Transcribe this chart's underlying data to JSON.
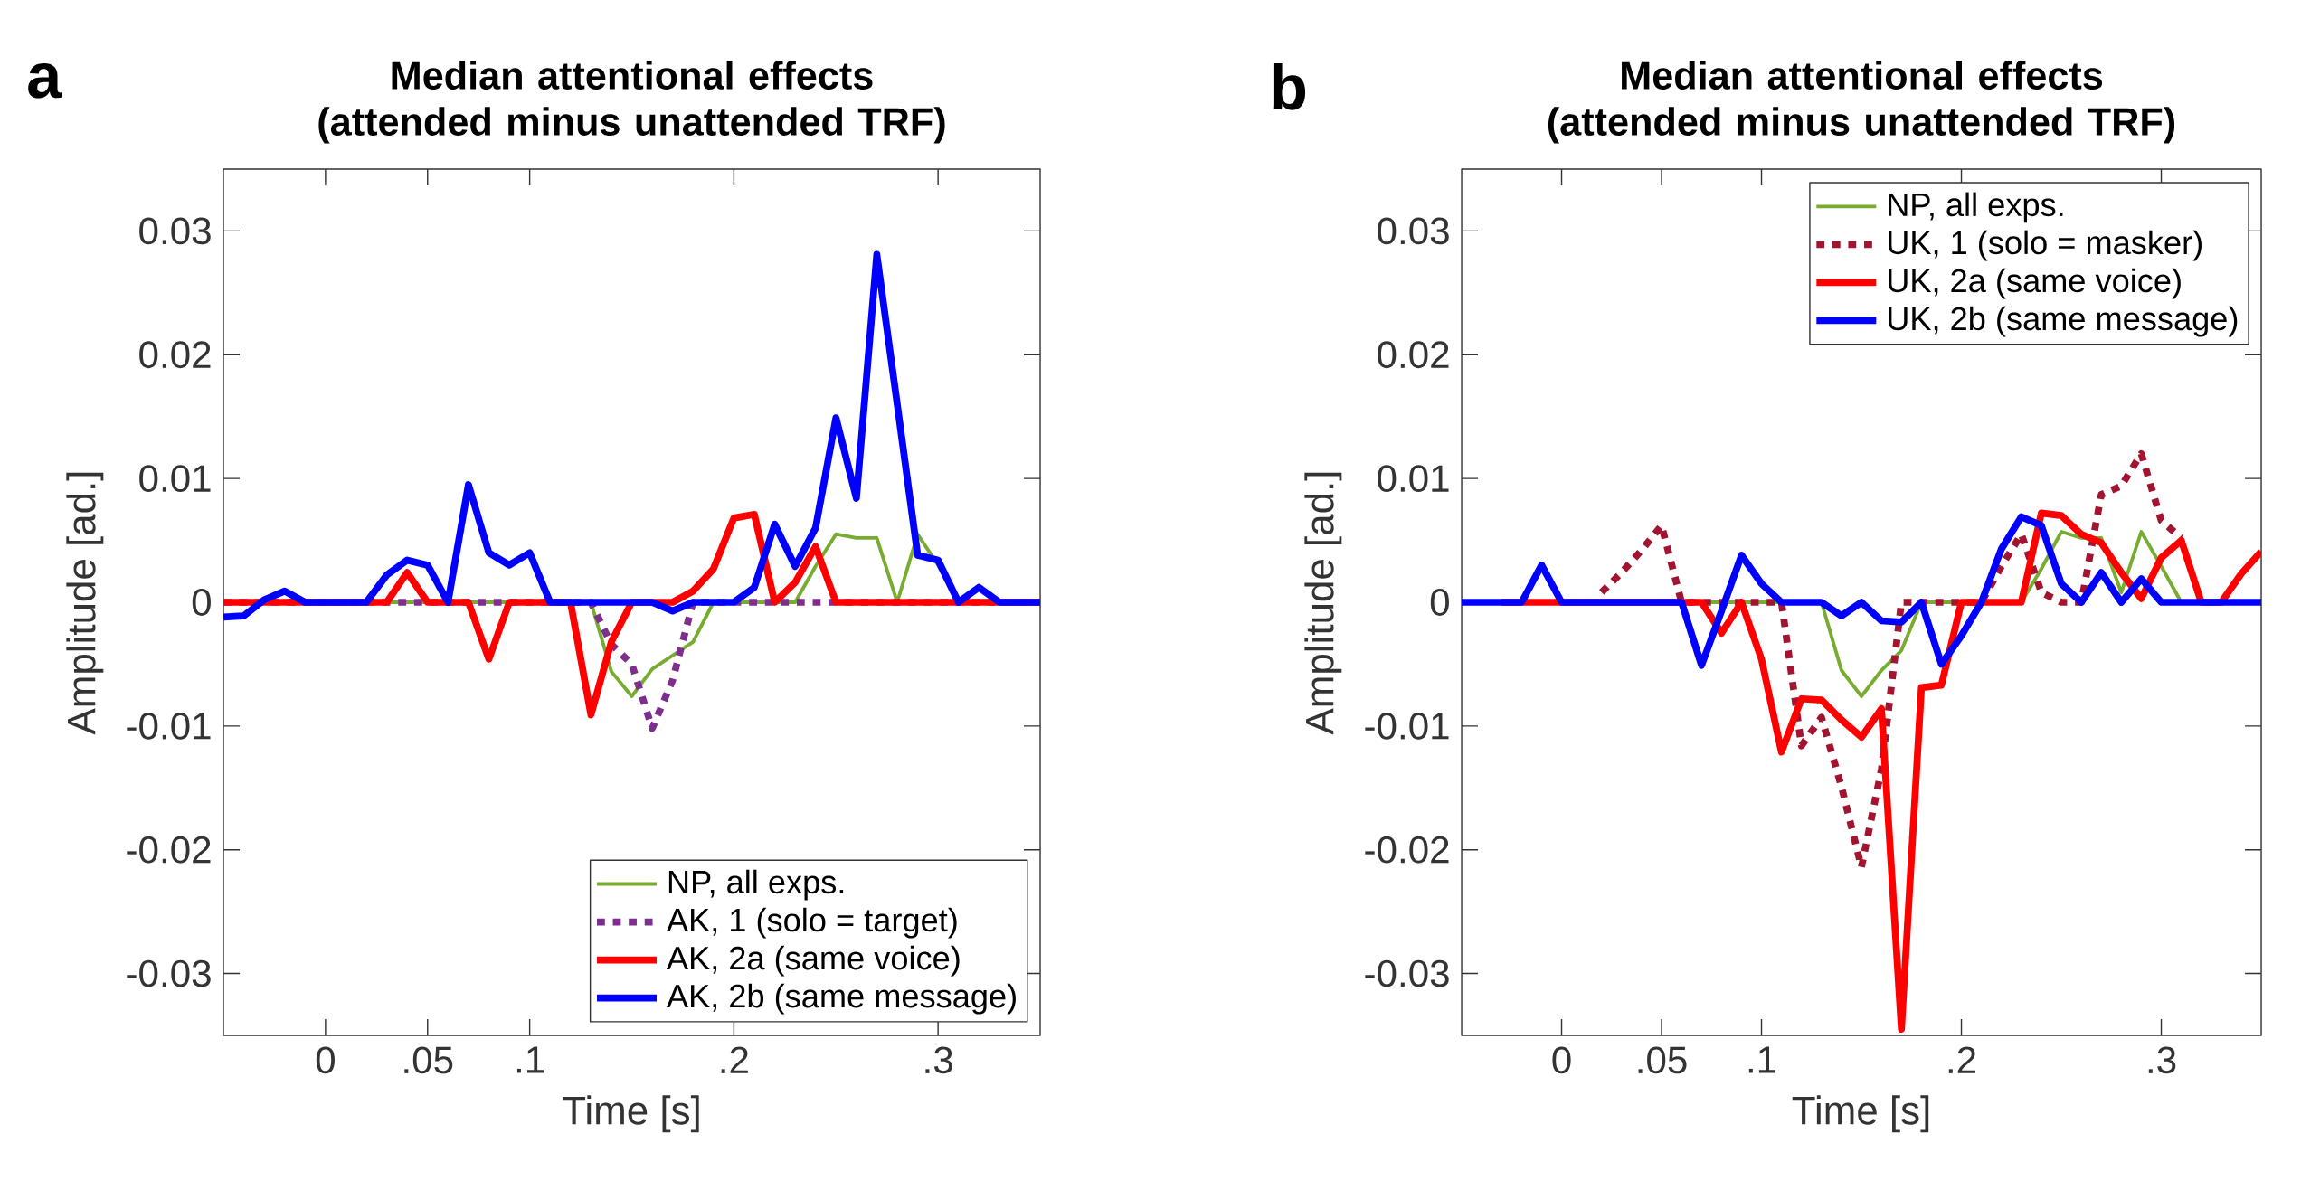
{
  "chart_data": [
    {
      "type": "line",
      "title": "Median attentional effects (attended minus unattended TRF)",
      "xlabel": "Time [s]",
      "ylabel": "Amplitude [ad.]",
      "annotations": [
        "a"
      ],
      "xlim": [
        -0.05,
        0.35
      ],
      "ylim": [
        -0.035,
        0.035
      ],
      "xticks": [
        0,
        {
          "value": 0.05,
          "label": ".05"
        },
        {
          "value": 0.1,
          "label": ".1"
        },
        {
          "value": 0.2,
          "label": ".2"
        },
        {
          "value": 0.3,
          "label": ".3"
        }
      ],
      "yticks": [
        -0.03,
        -0.02,
        -0.01,
        0,
        0.01,
        0.02,
        0.03
      ],
      "legend": "bottom right",
      "grid": false,
      "x": [
        -0.05,
        -0.04,
        -0.03,
        -0.02,
        -0.01,
        0,
        0.01,
        0.02,
        0.03,
        0.04,
        0.05,
        0.06,
        0.07,
        0.08,
        0.09,
        0.1,
        0.11,
        0.12,
        0.13,
        0.14,
        0.15,
        0.16,
        0.17,
        0.18,
        0.19,
        0.2,
        0.21,
        0.22,
        0.23,
        0.24,
        0.25,
        0.26,
        0.27,
        0.28,
        0.29,
        0.3,
        0.31,
        0.32,
        0.33,
        0.34,
        0.35
      ],
      "series": [
        {
          "name": "NP, all exps.",
          "color": "#77ac30",
          "line_style": "solid",
          "values": [
            null,
            null,
            null,
            null,
            null,
            null,
            null,
            0,
            0,
            0,
            0,
            0,
            0,
            0,
            0,
            0,
            0,
            0,
            0,
            -0.0056,
            -0.0076,
            -0.0054,
            -0.0043,
            -0.0032,
            0,
            0,
            0,
            0,
            0,
            0.0029,
            0.0055,
            0.0052,
            0.0052,
            0,
            0.0055,
            0.003,
            0,
            null,
            null,
            null,
            null
          ]
        },
        {
          "name": "AK, 1 (solo = target)",
          "color": "#7e2f8e",
          "line_style": "dotted",
          "values": [
            0,
            0,
            0,
            0,
            0,
            0,
            0,
            0,
            0,
            0,
            0,
            0,
            0,
            0,
            0,
            0,
            0,
            0,
            0,
            -0.0034,
            -0.005,
            -0.0102,
            -0.0063,
            0,
            0,
            0,
            0,
            0,
            0,
            0,
            0,
            0,
            0,
            0,
            0,
            0,
            0,
            0,
            0,
            0,
            0
          ]
        },
        {
          "name": "AK, 2a (same voice)",
          "color": "#ff0000",
          "line_style": "solid",
          "values": [
            0,
            0,
            0,
            0,
            0,
            0,
            0,
            0,
            0,
            0.0024,
            0,
            0,
            0,
            -0.0046,
            0,
            0,
            0,
            0,
            -0.0091,
            -0.0032,
            0,
            0,
            0,
            0.0009,
            0.0027,
            0.0068,
            0.0071,
            0,
            0.0016,
            0.0045,
            0,
            0,
            0,
            0,
            0,
            0,
            0,
            0,
            0,
            0,
            0
          ]
        },
        {
          "name": "AK, 2b (same message)",
          "color": "#0000ff",
          "line_style": "solid",
          "values": [
            -0.0012,
            -0.0011,
            0.0002,
            0.0009,
            0,
            0,
            0,
            0,
            0.0022,
            0.0034,
            0.003,
            0,
            0.0095,
            0.004,
            0.003,
            0.004,
            0,
            0,
            0,
            0,
            0,
            0,
            -0.0007,
            0,
            0,
            0,
            0.0012,
            0.0063,
            0.0029,
            0.006,
            0.0149,
            0.0084,
            0.0281,
            0.016,
            0.0038,
            0.0034,
            0,
            0.0012,
            0,
            0,
            0
          ]
        }
      ]
    },
    {
      "type": "line",
      "title": "Median attentional effects (attended minus unattended TRF)",
      "xlabel": "Time [s]",
      "ylabel": "Amplitude [ad.]",
      "annotations": [
        "b"
      ],
      "xlim": [
        -0.05,
        0.35
      ],
      "ylim": [
        -0.035,
        0.035
      ],
      "xticks": [
        0,
        {
          "value": 0.05,
          "label": ".05"
        },
        {
          "value": 0.1,
          "label": ".1"
        },
        {
          "value": 0.2,
          "label": ".2"
        },
        {
          "value": 0.3,
          "label": ".3"
        }
      ],
      "yticks": [
        -0.03,
        -0.02,
        -0.01,
        0,
        0.01,
        0.02,
        0.03
      ],
      "legend": "top right",
      "grid": false,
      "x": [
        -0.05,
        -0.04,
        -0.03,
        -0.02,
        -0.01,
        0,
        0.01,
        0.02,
        0.03,
        0.04,
        0.05,
        0.06,
        0.07,
        0.08,
        0.09,
        0.1,
        0.11,
        0.12,
        0.13,
        0.14,
        0.15,
        0.16,
        0.17,
        0.18,
        0.19,
        0.2,
        0.21,
        0.22,
        0.23,
        0.24,
        0.25,
        0.26,
        0.27,
        0.28,
        0.29,
        0.3,
        0.31,
        0.32,
        0.33,
        0.34,
        0.35
      ],
      "series": [
        {
          "name": "NP, all exps.",
          "color": "#77ac30",
          "line_style": "solid",
          "values": [
            null,
            null,
            null,
            null,
            null,
            null,
            null,
            null,
            null,
            null,
            null,
            0,
            0,
            0,
            0,
            0,
            0,
            0,
            0,
            -0.0055,
            -0.0076,
            -0.0055,
            -0.0039,
            0,
            0,
            0,
            0,
            0,
            0,
            0.0027,
            0.0057,
            0.0052,
            0.0052,
            0.0008,
            0.0057,
            0.0029,
            0,
            0,
            null,
            null,
            null
          ]
        },
        {
          "name": "UK, 1 (solo = masker)",
          "color": "#a2142f",
          "line_style": "dotted",
          "values": [
            null,
            null,
            null,
            null,
            null,
            null,
            null,
            0.0008,
            0.0024,
            0.0042,
            0.0062,
            0,
            0,
            0,
            0,
            0,
            0,
            -0.0116,
            -0.0093,
            -0.0149,
            -0.0214,
            -0.0135,
            0,
            0,
            0,
            0,
            0,
            0.0029,
            0.0055,
            0.0008,
            0,
            0,
            0.0087,
            0.0094,
            0.012,
            0.0066,
            0.0052,
            null,
            null,
            null,
            null
          ]
        },
        {
          "name": "UK, 2a (same voice)",
          "color": "#ff0000",
          "line_style": "solid",
          "values": [
            null,
            null,
            0,
            0,
            0,
            0,
            0,
            0,
            0,
            0,
            0,
            0,
            0,
            -0.0025,
            0,
            -0.0046,
            -0.0121,
            -0.0078,
            -0.0079,
            -0.0095,
            -0.0109,
            -0.0086,
            -0.0345,
            -0.0069,
            -0.0067,
            0,
            0,
            0,
            0,
            0.0072,
            0.007,
            0.0055,
            0.0048,
            0.0024,
            0.0003,
            0.0036,
            0.005,
            0,
            0,
            0.0023,
            0.0041
          ]
        },
        {
          "name": "UK, 2b (same message)",
          "color": "#0000ff",
          "line_style": "solid",
          "values": [
            0,
            0,
            0,
            0,
            0.003,
            0,
            0,
            0,
            0,
            0,
            0,
            0,
            -0.0051,
            -0.0007,
            0.0038,
            0.0015,
            0,
            0,
            0,
            -0.0011,
            0,
            -0.0015,
            -0.0016,
            0,
            -0.005,
            -0.0027,
            0,
            0.0043,
            0.0069,
            0.0062,
            0.0015,
            0,
            0.0024,
            0,
            0.0019,
            0,
            0,
            0,
            0,
            0,
            0
          ]
        }
      ]
    }
  ]
}
